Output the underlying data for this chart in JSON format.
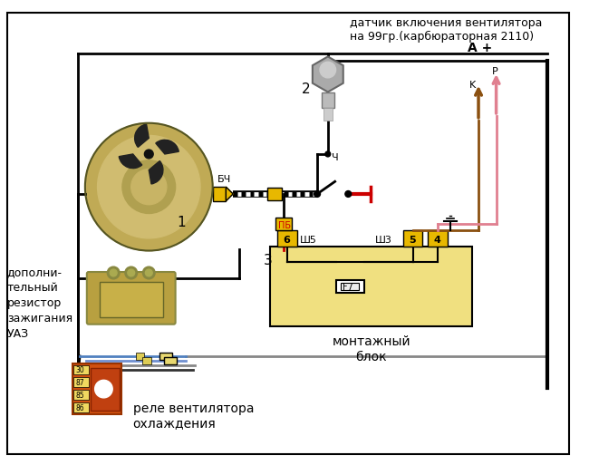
{
  "bg_color": "#ffffff",
  "black": "#000000",
  "yellow": "#e8b800",
  "light_yellow": "#f0e080",
  "red": "#cc0000",
  "dark_red": "#990000",
  "gray": "#888888",
  "blue": "#5080c0",
  "light_blue": "#7090d0",
  "brown": "#8B5010",
  "pink": "#e08090",
  "orange_relay": "#d05010",
  "white": "#ffffff",
  "sensor_label": "датчик включения вентилятора\nна 99гр.(карбюраторная 2110)",
  "resistor_label": "дополни-\nтельный\nрезистор\nзажигания\nУАЗ",
  "relay_label": "реле вентилятора\nохлаждения",
  "block_text1": "монтажный",
  "block_text2": "блок",
  "wire_lw": 2.0
}
